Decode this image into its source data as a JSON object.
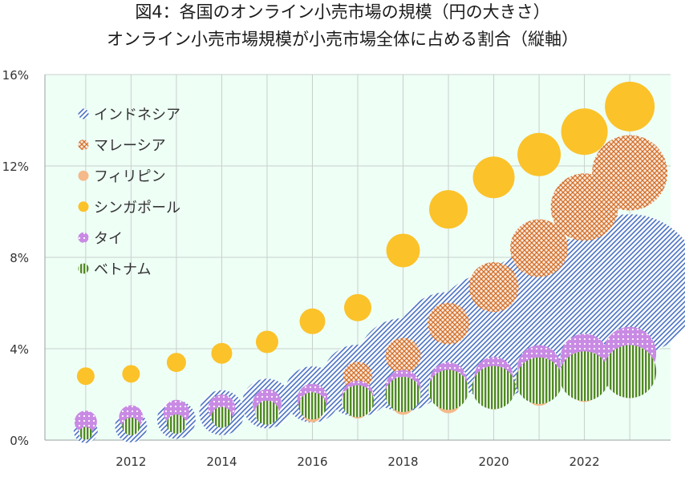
{
  "chart_data": {
    "type": "bubble",
    "title": "図4：各国のオンライン小売市場の規模（円の大きさ）",
    "subtitle": "オンライン小売市場規模が小売市場全体に占める割合（縦軸）",
    "xlabel": "",
    "ylabel": "",
    "xlim": [
      2010.1,
      2023.9
    ],
    "ylim": [
      0,
      16
    ],
    "x_ticks": [
      "2012",
      "2014",
      "2016",
      "2018",
      "2020",
      "2022"
    ],
    "y_ticks": [
      "0%",
      "4%",
      "8%",
      "12%",
      "16%"
    ],
    "grid": true,
    "legend_position": "top-left",
    "colors": {
      "background": "#eefff6",
      "grid": "#c8d0cc",
      "indonesia": "#4a72c4",
      "malaysia": "#d2702a",
      "philippines": "#f5b98a",
      "singapore": "#fbc22a",
      "thailand": "#c98ae4",
      "vietnam": "#4e8a22"
    },
    "series": [
      {
        "name": "インドネシア",
        "key": "indonesia",
        "x": [
          2011,
          2012,
          2013,
          2014,
          2015,
          2016,
          2017,
          2018,
          2019,
          2020,
          2021,
          2022,
          2023
        ],
        "y": [
          0.4,
          0.6,
          0.9,
          1.2,
          1.6,
          2.0,
          2.6,
          3.3,
          4.2,
          4.6,
          5.3,
          6.0,
          6.8
        ],
        "size": [
          15,
          20,
          24,
          28,
          31,
          35,
          45,
          58,
          65,
          78,
          84,
          82,
          88
        ]
      },
      {
        "name": "マレーシア",
        "key": "malaysia",
        "x": [
          2016,
          2017,
          2018,
          2019,
          2020,
          2021,
          2022,
          2023
        ],
        "y": [
          2.0,
          2.8,
          3.7,
          5.1,
          6.7,
          8.4,
          10.2,
          11.7
        ],
        "size": [
          9,
          18,
          22,
          26,
          31,
          36,
          42,
          47
        ]
      },
      {
        "name": "フィリピン",
        "key": "philippines",
        "x": [
          2011,
          2012,
          2013,
          2014,
          2015,
          2016,
          2017,
          2018,
          2019,
          2020,
          2021,
          2022,
          2023
        ],
        "y": [
          0.3,
          0.5,
          0.7,
          0.9,
          1.1,
          1.2,
          1.4,
          1.6,
          1.7,
          1.9,
          2.1,
          2.3,
          2.5
        ],
        "size": [
          6,
          8,
          9,
          10,
          11,
          12,
          13,
          14,
          15,
          16,
          17,
          18,
          19
        ]
      },
      {
        "name": "シンガポール",
        "key": "singapore",
        "x": [
          2011,
          2012,
          2013,
          2014,
          2015,
          2016,
          2017,
          2018,
          2019,
          2020,
          2021,
          2022,
          2023
        ],
        "y": [
          2.8,
          2.9,
          3.4,
          3.8,
          4.3,
          5.2,
          5.8,
          8.3,
          10.1,
          11.5,
          12.5,
          13.5,
          14.6
        ],
        "size": [
          11,
          11,
          12,
          13,
          14,
          16,
          17,
          21,
          24,
          26,
          27,
          29,
          31
        ]
      },
      {
        "name": "タイ",
        "key": "thailand",
        "x": [
          2011,
          2012,
          2013,
          2014,
          2015,
          2016,
          2017,
          2018,
          2019,
          2020,
          2021,
          2022,
          2023
        ],
        "y": [
          0.8,
          1.0,
          1.2,
          1.4,
          1.6,
          1.8,
          1.9,
          2.3,
          2.6,
          2.8,
          3.2,
          3.6,
          3.8
        ],
        "size": [
          14,
          15,
          16,
          17,
          18,
          19,
          20,
          22,
          23,
          24,
          27,
          30,
          33
        ]
      },
      {
        "name": "ベトナム",
        "key": "vietnam",
        "x": [
          2011,
          2012,
          2013,
          2014,
          2015,
          2016,
          2017,
          2018,
          2019,
          2020,
          2021,
          2022,
          2023
        ],
        "y": [
          0.3,
          0.6,
          0.7,
          1.0,
          1.2,
          1.5,
          1.7,
          2.0,
          2.2,
          2.3,
          2.6,
          2.8,
          3.0
        ],
        "size": [
          8,
          11,
          12,
          13,
          15,
          17,
          20,
          22,
          25,
          27,
          29,
          31,
          33
        ]
      }
    ]
  }
}
